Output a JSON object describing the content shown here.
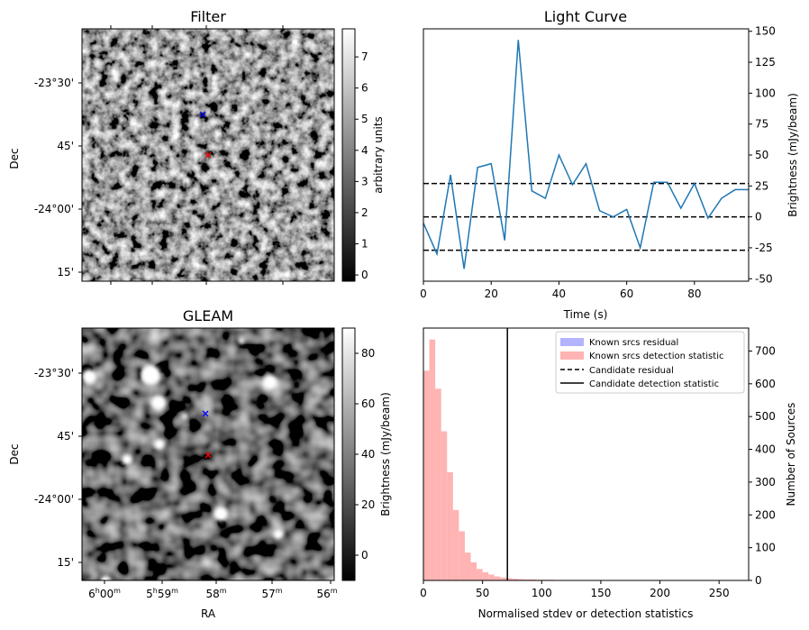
{
  "chart_data": [
    {
      "type": "heatmap",
      "title": "Filter",
      "ylabel": "Dec",
      "ytick_labels": [
        "-23°30'",
        "45'",
        "-24°00'",
        "15'"
      ],
      "colorbar": {
        "label": "arbitrary units",
        "ticks": [
          0,
          1,
          2,
          3,
          4,
          5,
          6,
          7
        ],
        "range": [
          -0.2,
          7.9
        ]
      },
      "markers": [
        {
          "symbol": "x",
          "color": "#0000ff",
          "ra": 58.1,
          "dec": -23.6
        },
        {
          "symbol": "x",
          "color": "#ff0000",
          "ra": 58.0,
          "dec": -23.75
        }
      ]
    },
    {
      "type": "line",
      "title": "Light Curve",
      "xlabel": "Time (s)",
      "ylabel": "Brightness (mJy/beam)",
      "xticks": [
        0,
        20,
        40,
        60,
        80
      ],
      "yticks": [
        -50,
        -25,
        0,
        25,
        50,
        75,
        100,
        125,
        150
      ],
      "xlim": [
        0,
        96
      ],
      "ylim": [
        -52,
        152
      ],
      "series": [
        {
          "color": "#1f77b4",
          "x": [
            0,
            4,
            8,
            12,
            16,
            20,
            24,
            28,
            32,
            36,
            40,
            44,
            48,
            52,
            56,
            60,
            64,
            68,
            72,
            76,
            80,
            84,
            88,
            92,
            96
          ],
          "y": [
            -5,
            -30,
            34,
            -42,
            40,
            43,
            -19,
            143,
            21,
            15,
            50,
            26,
            43,
            5,
            0,
            6,
            -25,
            28,
            28,
            7,
            27,
            -1,
            15,
            22,
            22
          ]
        }
      ],
      "hlines": [
        {
          "y": 27,
          "style": "dashed",
          "color": "#000000"
        },
        {
          "y": 0,
          "style": "dashed",
          "color": "#000000"
        },
        {
          "y": -27,
          "style": "dashed",
          "color": "#000000"
        }
      ]
    },
    {
      "type": "heatmap",
      "title": "GLEAM",
      "xlabel": "RA",
      "ylabel": "Dec",
      "xtick_labels": [
        {
          "h": "6",
          "hs": "h",
          "m": "00",
          "ms": "m"
        },
        {
          "h": "5",
          "hs": "h",
          "m": "59",
          "ms": "m"
        },
        {
          "h": "",
          "hs": "",
          "m": "58",
          "ms": "m"
        },
        {
          "h": "",
          "hs": "",
          "m": "57",
          "ms": "m"
        },
        {
          "h": "",
          "hs": "",
          "m": "56",
          "ms": "m"
        }
      ],
      "ytick_labels": [
        "-23°30'",
        "45'",
        "-24°00'",
        "15'"
      ],
      "colorbar": {
        "label": "Brightness (mJy/beam)",
        "ticks": [
          0,
          20,
          40,
          60,
          80
        ],
        "range": [
          -10,
          90
        ]
      },
      "markers": [
        {
          "symbol": "x",
          "color": "#0000ff",
          "ra": 58.1,
          "dec": -23.6
        },
        {
          "symbol": "x",
          "color": "#ff0000",
          "ra": 58.0,
          "dec": -23.75
        }
      ]
    },
    {
      "type": "bar",
      "subtype": "histogram",
      "xlabel": "Normalised stdev or detection statistics",
      "ylabel": "Number of Sources",
      "xticks": [
        0,
        50,
        100,
        150,
        200,
        250
      ],
      "yticks": [
        0,
        100,
        200,
        300,
        400,
        500,
        600,
        700
      ],
      "xlim": [
        0,
        275
      ],
      "ylim": [
        0,
        770
      ],
      "bin_width": 5,
      "series": [
        {
          "name": "Known srcs residual",
          "color": "#b3b3ff",
          "values": []
        },
        {
          "name": "Known srcs detection statistic",
          "color": "#ffb3b3",
          "values": [
            640,
            735,
            585,
            455,
            330,
            215,
            150,
            85,
            55,
            35,
            25,
            18,
            12,
            9,
            7,
            5,
            4,
            3,
            3,
            2,
            2,
            2,
            1,
            1,
            1,
            1,
            1,
            1,
            1,
            1,
            1,
            1,
            1,
            0,
            1,
            0,
            1,
            0,
            0,
            1,
            0,
            0,
            0,
            0,
            1,
            0,
            0,
            0,
            0,
            0,
            1,
            0,
            0,
            0,
            0
          ]
        },
        {
          "name": "Candidate residual",
          "style": "dashed",
          "color": "#000000"
        },
        {
          "name": "Candidate detection statistic",
          "style": "solid",
          "color": "#000000",
          "value": 71
        }
      ],
      "legend": "top-right"
    }
  ]
}
